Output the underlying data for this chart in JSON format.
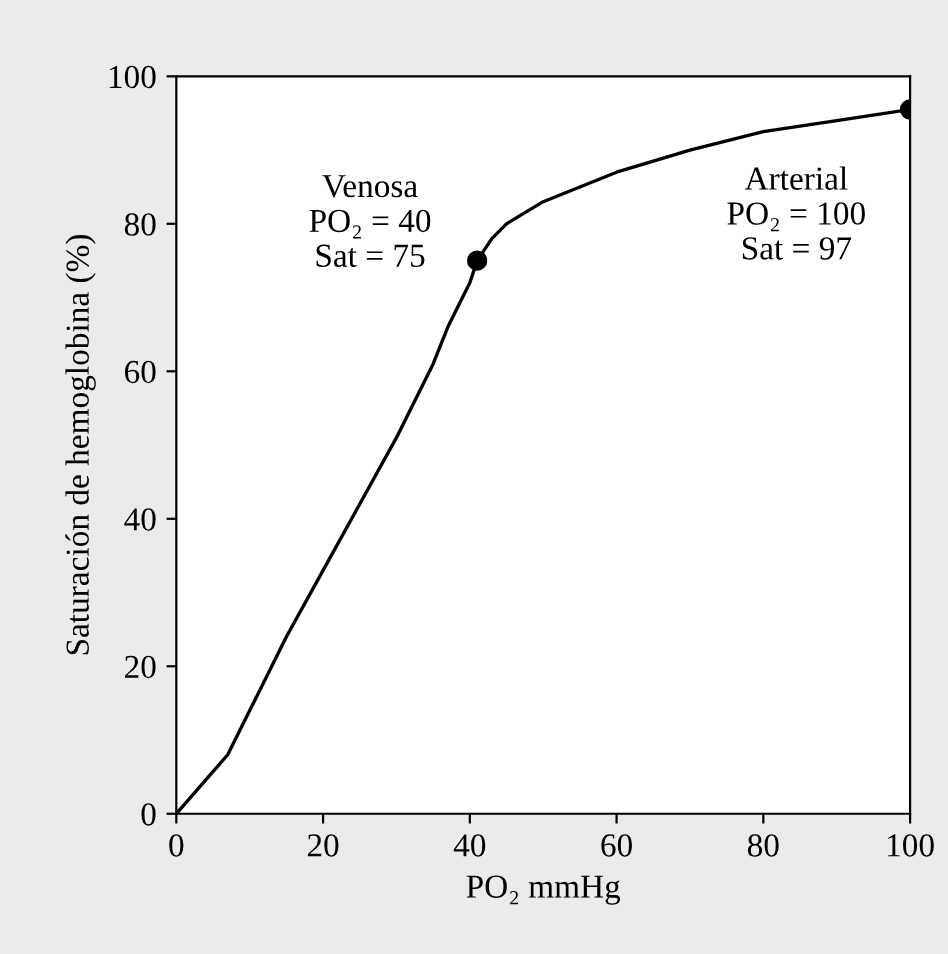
{
  "chart_data": {
    "type": "line",
    "xlabel": "PO₂ mmHg",
    "ylabel": "Saturación de hemoglobina (%)",
    "xlim": [
      0,
      100
    ],
    "ylim": [
      0,
      100
    ],
    "xticks": [
      0,
      20,
      40,
      60,
      80,
      100
    ],
    "yticks": [
      0,
      20,
      40,
      60,
      80,
      100
    ],
    "grid": false,
    "series": [
      {
        "color": "#000000",
        "marker": "none",
        "x": [
          0,
          7,
          10,
          15,
          20,
          25,
          30,
          35,
          37,
          40,
          41,
          43,
          45,
          50,
          60,
          70,
          80,
          90,
          100
        ],
        "values": [
          0,
          8,
          14,
          24,
          33,
          42,
          51,
          61,
          66,
          72,
          75,
          78,
          80,
          83,
          87,
          90,
          92.5,
          94,
          95.5
        ]
      },
      {
        "type": "scatter",
        "color": "#000000",
        "marker": "circle",
        "x": [
          41,
          100
        ],
        "values": [
          75,
          95.5
        ]
      }
    ],
    "annotations": [
      "Venosa\nPO₂ = 40\nSat = 75",
      "Arterial\nPO₂ = 100\nSat = 97"
    ]
  }
}
